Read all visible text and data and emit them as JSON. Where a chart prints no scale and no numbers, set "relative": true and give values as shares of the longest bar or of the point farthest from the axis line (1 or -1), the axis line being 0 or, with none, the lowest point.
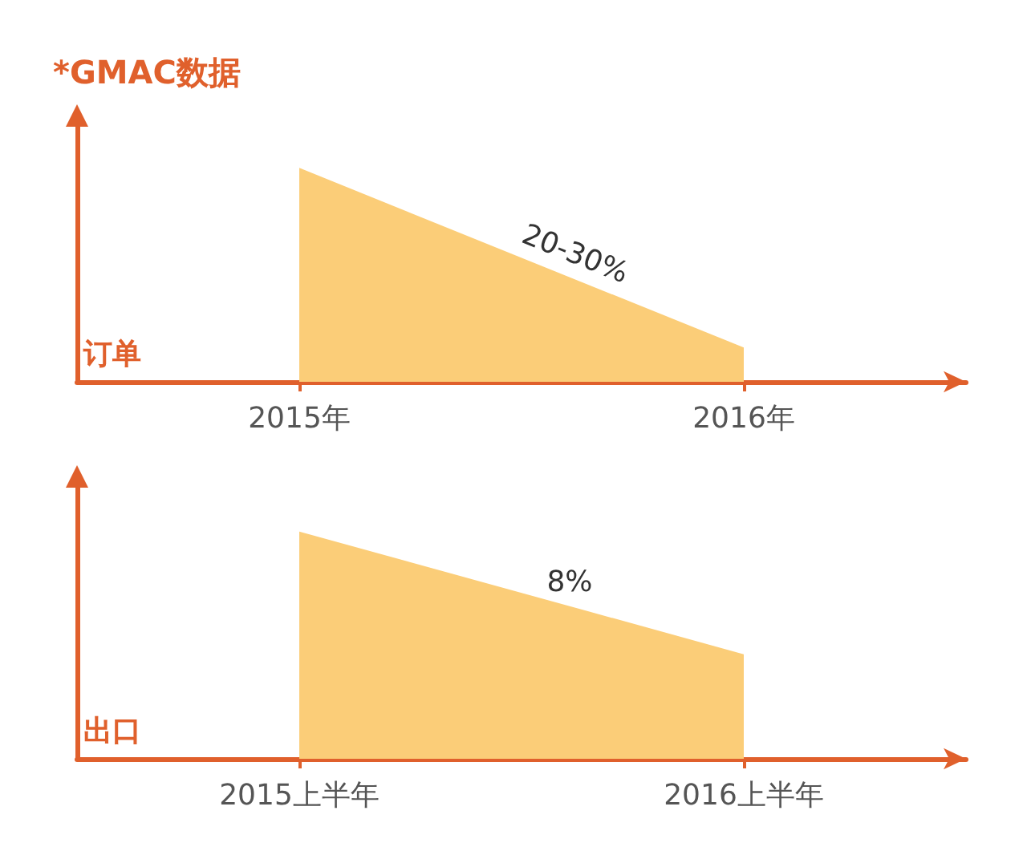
{
  "chart_data": [
    {
      "type": "area",
      "title": "*GMAC数据",
      "ylabel": "订单",
      "categories": [
        "2015年",
        "2016年"
      ],
      "relative": true,
      "grid": false,
      "annotations": [
        "20-30%"
      ],
      "series": [
        {
          "color": "#fbcd78",
          "values": [
            1,
            0.16
          ]
        }
      ]
    },
    {
      "type": "area",
      "ylabel": "出口",
      "categories": [
        "2015上半年",
        "2016上半年"
      ],
      "relative": true,
      "grid": false,
      "annotations": [
        "8%"
      ],
      "series": [
        {
          "color": "#fbcd78",
          "values": [
            1,
            0.46
          ]
        }
      ]
    }
  ]
}
